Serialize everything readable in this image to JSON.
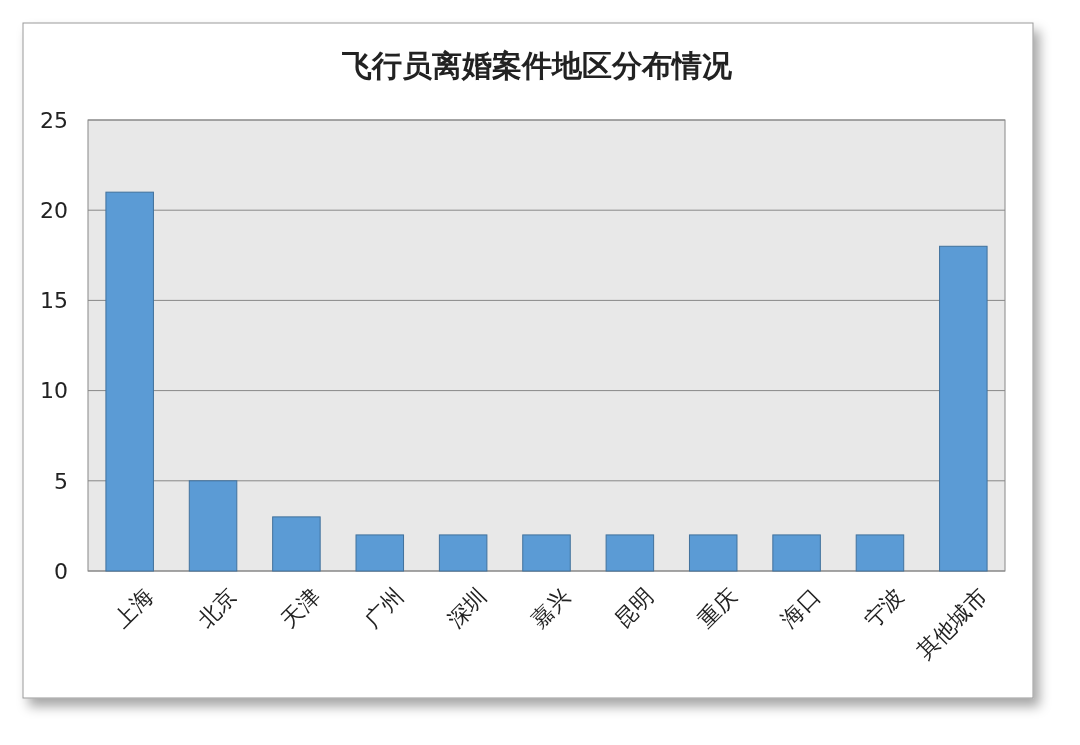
{
  "chart_data": {
    "type": "bar",
    "title": "飞行员离婚案件地区分布情况",
    "categories": [
      "上海",
      "北京",
      "天津",
      "广州",
      "深圳",
      "嘉兴",
      "昆明",
      "重庆",
      "海口",
      "宁波",
      "其他城市"
    ],
    "values": [
      21,
      5,
      3,
      2,
      2,
      2,
      2,
      2,
      2,
      2,
      18
    ],
    "color": "#5b9bd5",
    "ylim": [
      0,
      25
    ],
    "yticks": [
      0,
      5,
      10,
      15,
      20,
      25
    ],
    "grid": "y"
  }
}
